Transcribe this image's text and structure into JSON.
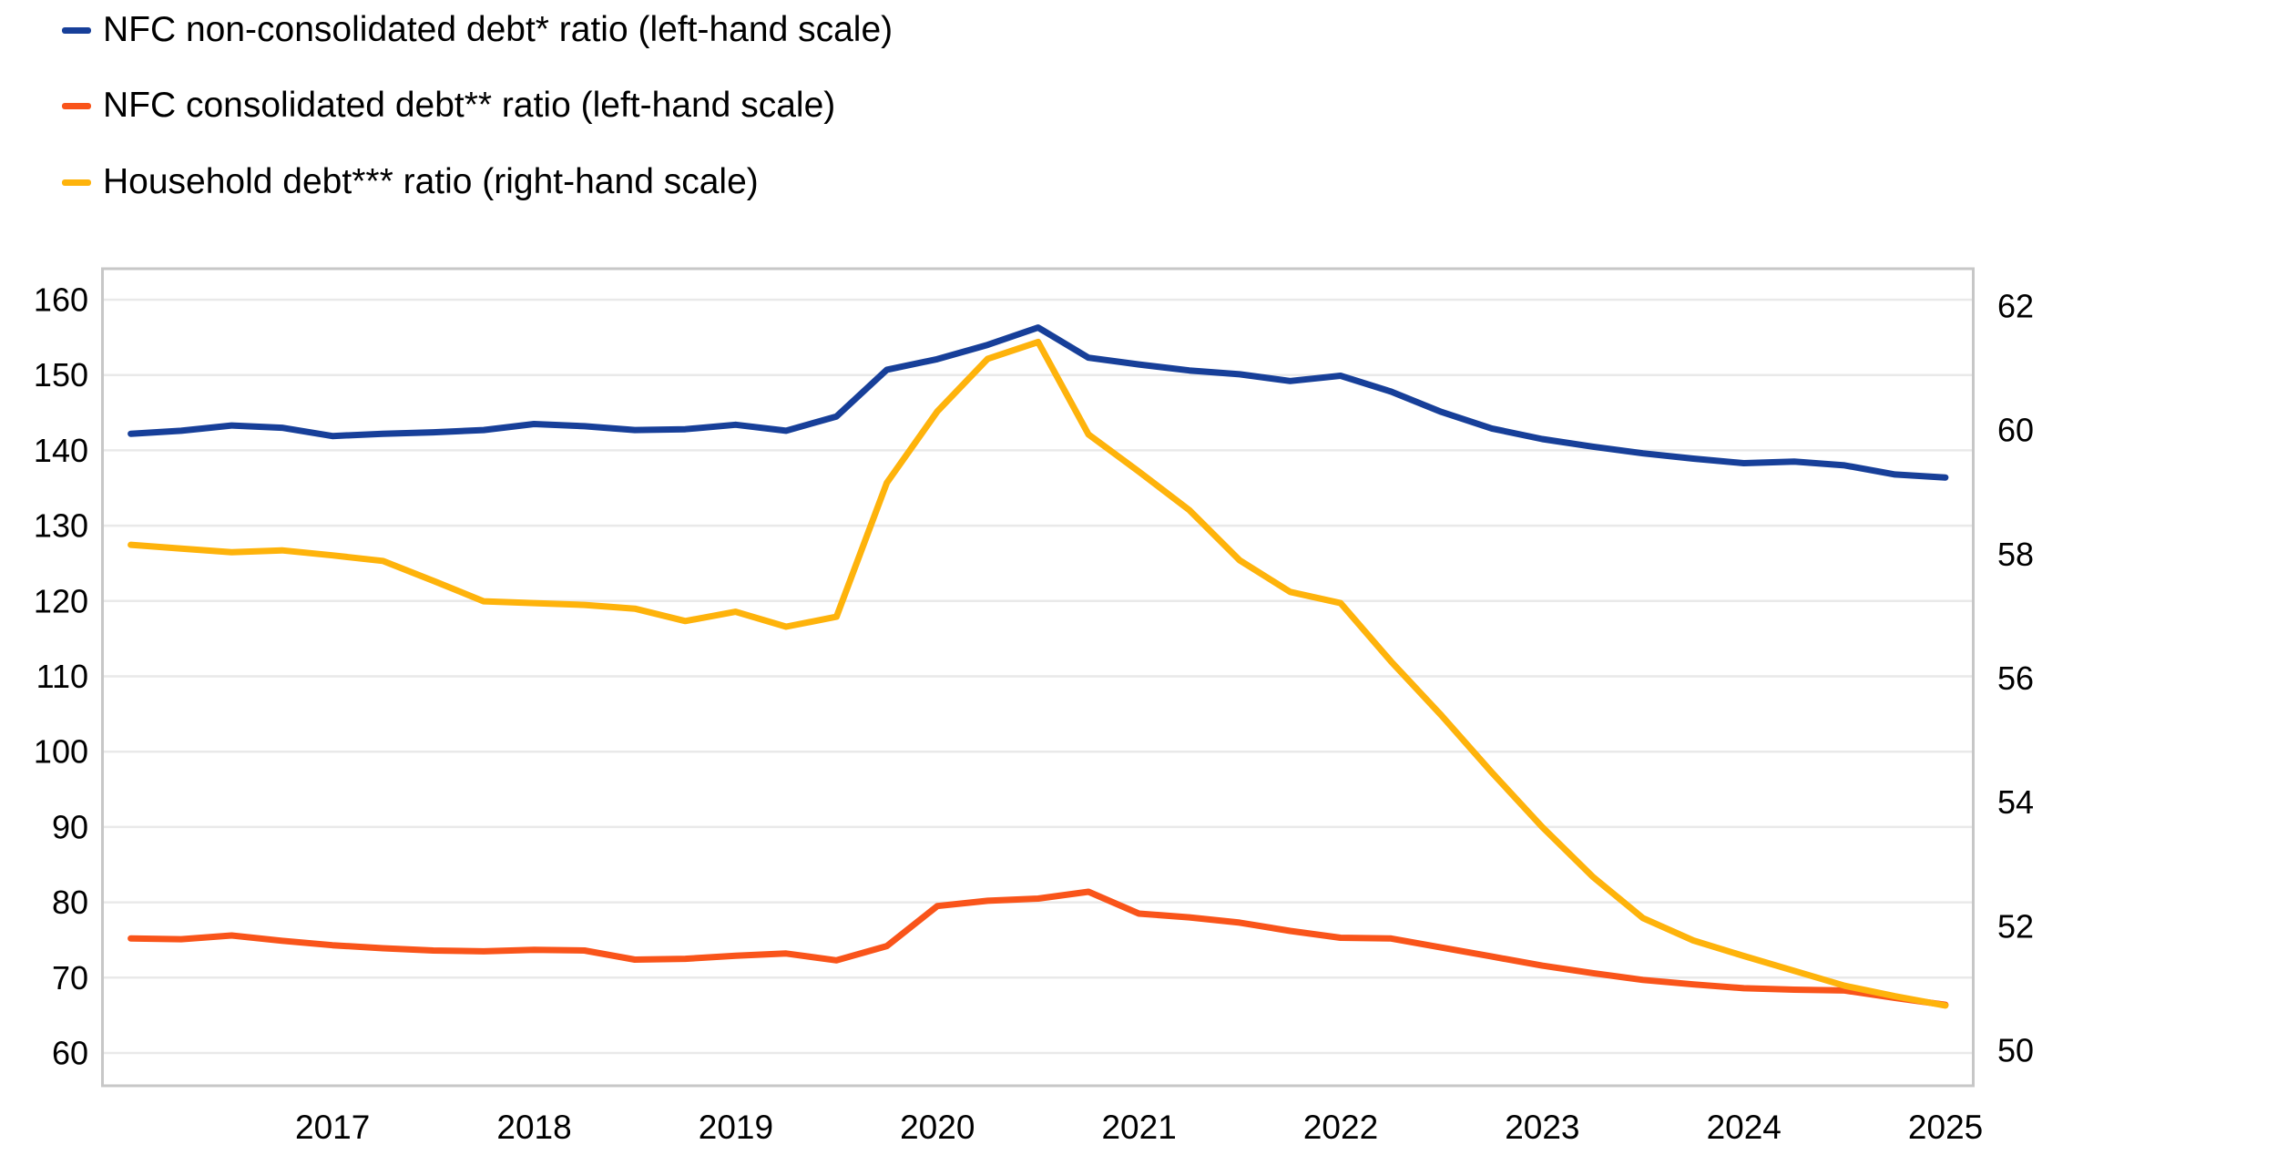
{
  "legend": {
    "items": [
      {
        "label": "NFC non-consolidated debt* ratio (left-hand scale)",
        "color": "#173F99"
      },
      {
        "label": "NFC consolidated debt** ratio (left-hand scale)",
        "color": "#F9541A"
      },
      {
        "label": "Household debt*** ratio (right-hand scale)",
        "color": "#FEB30B"
      }
    ]
  },
  "chart_data": {
    "type": "line",
    "title": "",
    "x": {
      "unit": "quarter",
      "start": "2016-Q1",
      "end": "2025-Q1",
      "tick_labels": [
        "2017",
        "2018",
        "2019",
        "2020",
        "2021",
        "2022",
        "2023",
        "2024",
        "2025"
      ]
    },
    "left_axis": {
      "ticks": [
        60,
        70,
        80,
        90,
        100,
        110,
        120,
        130,
        140,
        150,
        160
      ],
      "range": [
        55.7,
        164.2
      ]
    },
    "right_axis": {
      "ticks": [
        50,
        52,
        54,
        56,
        58,
        60,
        62
      ],
      "range": [
        49.4,
        62.6
      ]
    },
    "grid": "horizontal",
    "legend_position": "top-left",
    "series": [
      {
        "name": "NFC non-consolidated debt* ratio",
        "axis": "left",
        "color": "#173F99",
        "values": [
          142.2,
          142.6,
          143.3,
          143.0,
          141.9,
          142.2,
          142.4,
          142.7,
          143.5,
          143.2,
          142.7,
          142.8,
          143.4,
          142.6,
          144.5,
          150.7,
          152.1,
          154.0,
          156.3,
          152.3,
          151.4,
          150.6,
          150.1,
          149.2,
          149.9,
          147.8,
          145.1,
          142.9,
          141.5,
          140.5,
          139.6,
          138.9,
          138.3,
          138.5,
          138.0,
          136.8,
          136.4
        ]
      },
      {
        "name": "NFC consolidated debt** ratio",
        "axis": "left",
        "color": "#F9541A",
        "values": [
          75.2,
          75.1,
          75.6,
          74.9,
          74.3,
          73.9,
          73.6,
          73.5,
          73.7,
          73.6,
          72.4,
          72.5,
          72.9,
          73.2,
          72.3,
          74.2,
          79.5,
          80.2,
          80.5,
          81.4,
          78.5,
          78.0,
          77.3,
          76.2,
          75.3,
          75.2,
          74.0,
          72.8,
          71.6,
          70.6,
          69.7,
          69.1,
          68.6,
          68.4,
          68.3,
          67.3,
          66.4
        ]
      },
      {
        "name": "Household debt*** ratio",
        "axis": "right",
        "color": "#FEB30B",
        "values": [
          58.15,
          58.09,
          58.03,
          58.06,
          57.98,
          57.89,
          57.57,
          57.24,
          57.21,
          57.18,
          57.12,
          56.92,
          57.07,
          56.83,
          56.99,
          59.15,
          60.3,
          61.15,
          61.42,
          59.93,
          59.33,
          58.71,
          57.9,
          57.39,
          57.21,
          56.27,
          55.4,
          54.48,
          53.6,
          52.8,
          52.13,
          51.77,
          51.52,
          51.28,
          51.04,
          50.87,
          50.72
        ]
      }
    ]
  },
  "style": {
    "grid_color": "#E9E9E9",
    "border_color": "#C7C7C7",
    "tick_text_color": "#000000",
    "background": "#FFFFFF"
  }
}
